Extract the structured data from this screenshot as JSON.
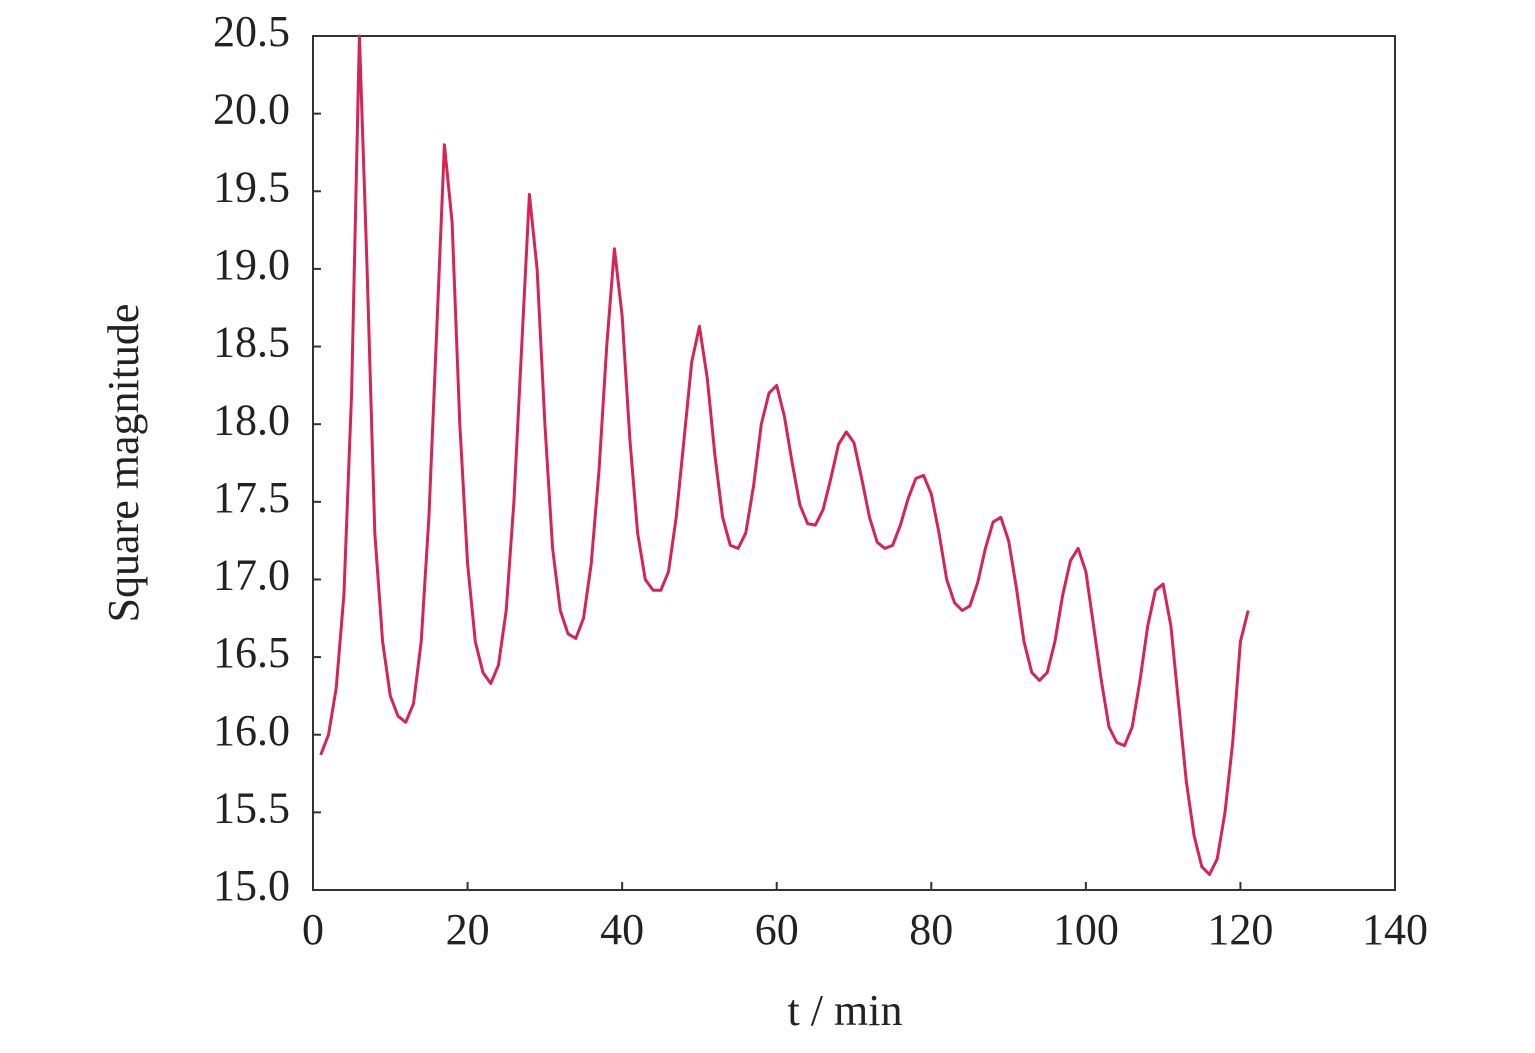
{
  "chart_data": {
    "type": "line",
    "x_label": "t / min",
    "y_label": "Square magnitude",
    "xlim": [
      0,
      140
    ],
    "xticks": [
      0,
      20,
      40,
      60,
      80,
      100,
      120,
      140
    ],
    "ylim": [
      15.0,
      20.5
    ],
    "yticks": [
      {
        "value": 15,
        "label": "15.0"
      },
      15.5,
      {
        "value": 16,
        "label": "16.0"
      },
      16.5,
      {
        "value": 17,
        "label": "17.0"
      },
      17.5,
      {
        "value": 18,
        "label": "18.0"
      },
      18.5,
      {
        "value": 19,
        "label": "19.0"
      },
      19.5,
      {
        "value": 20,
        "label": "20.0"
      },
      20.5
    ],
    "grid": false,
    "series": [
      {
        "color": "#d42458",
        "x": [
          1,
          2,
          3,
          4,
          5,
          6,
          7,
          8,
          9,
          10,
          11,
          12,
          13,
          14,
          15,
          16,
          17,
          18,
          19,
          20,
          21,
          22,
          23,
          24,
          25,
          26,
          27,
          28,
          29,
          30,
          31,
          32,
          33,
          34,
          35,
          36,
          37,
          38,
          39,
          40,
          41,
          42,
          43,
          44,
          45,
          46,
          47,
          48,
          49,
          50,
          51,
          52,
          53,
          54,
          55,
          56,
          57,
          58,
          59,
          60,
          61,
          62,
          63,
          64,
          65,
          66,
          67,
          68,
          69,
          70,
          71,
          72,
          73,
          74,
          75,
          76,
          77,
          78,
          79,
          80,
          81,
          82,
          83,
          84,
          85,
          86,
          87,
          88,
          89,
          90,
          91,
          92,
          93,
          94,
          95,
          96,
          97,
          98,
          99,
          100,
          101,
          102,
          103,
          104,
          105,
          106,
          107,
          108,
          109,
          110,
          111,
          112,
          113,
          114,
          115,
          116,
          117,
          118,
          119,
          120,
          121
        ],
        "values": [
          15.87,
          16.0,
          16.3,
          16.9,
          18.2,
          20.5,
          19.0,
          17.3,
          16.6,
          16.25,
          16.12,
          16.08,
          16.2,
          16.6,
          17.4,
          18.6,
          19.8,
          19.3,
          18.0,
          17.1,
          16.6,
          16.4,
          16.33,
          16.45,
          16.8,
          17.5,
          18.5,
          19.48,
          19.0,
          18.0,
          17.2,
          16.8,
          16.65,
          16.62,
          16.75,
          17.1,
          17.7,
          18.5,
          19.13,
          18.7,
          17.9,
          17.3,
          17.0,
          16.93,
          16.93,
          17.05,
          17.4,
          17.9,
          18.4,
          18.63,
          18.3,
          17.8,
          17.4,
          17.22,
          17.2,
          17.3,
          17.6,
          18.0,
          18.2,
          18.25,
          18.05,
          17.75,
          17.48,
          17.36,
          17.35,
          17.45,
          17.65,
          17.87,
          17.95,
          17.88,
          17.65,
          17.4,
          17.24,
          17.2,
          17.22,
          17.35,
          17.52,
          17.65,
          17.67,
          17.55,
          17.3,
          17.0,
          16.85,
          16.8,
          16.83,
          16.98,
          17.2,
          17.37,
          17.4,
          17.25,
          16.95,
          16.6,
          16.4,
          16.35,
          16.4,
          16.6,
          16.9,
          17.12,
          17.2,
          17.05,
          16.7,
          16.35,
          16.05,
          15.95,
          15.93,
          16.05,
          16.35,
          16.7,
          16.93,
          16.97,
          16.7,
          16.2,
          15.7,
          15.35,
          15.15,
          15.1,
          15.2,
          15.5,
          15.95,
          16.6,
          16.8
        ]
      }
    ]
  }
}
